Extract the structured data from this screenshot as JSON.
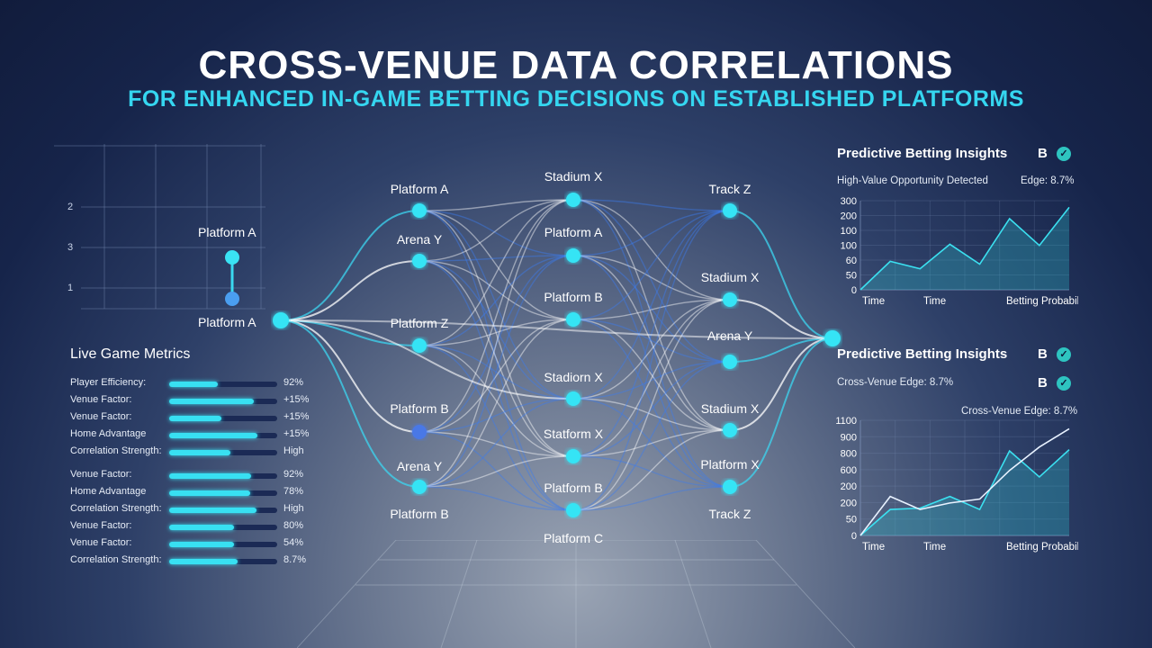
{
  "header": {
    "title": "CROSS-VENUE DATA CORRELATIONS",
    "subtitle": "FOR ENHANCED IN-GAME BETTING DECISIONS ON ESTABLISHED PLATFORMS"
  },
  "mini_chart": {
    "y_ticks": [
      "2",
      "3",
      "1"
    ],
    "top_label": "Platform A",
    "bottom_label": "Platform A"
  },
  "live_metrics": {
    "title": "Live Game Metrics",
    "rows": [
      {
        "label": "Player Efficiency:",
        "value": "92%",
        "level": 0.45
      },
      {
        "label": "Venue Factor:",
        "value": "+15%",
        "level": 0.78
      },
      {
        "label": "Venue Factor:",
        "value": "+15%",
        "level": 0.48
      },
      {
        "label": "Home Advantage",
        "value": "+15%",
        "level": 0.82
      },
      {
        "label": "Correlation Strength:",
        "value": "High",
        "level": 0.57
      },
      {
        "label": "Venue Factor:",
        "value": "92%",
        "level": 0.76
      },
      {
        "label": "Home Advantage",
        "value": "78%",
        "level": 0.75
      },
      {
        "label": "Correlation Strength:",
        "value": "High",
        "level": 0.81
      },
      {
        "label": "Venue Factor:",
        "value": "80%",
        "level": 0.6
      },
      {
        "label": "Venue Factor:",
        "value": "54%",
        "level": 0.6
      },
      {
        "label": "Correlation Strength:",
        "value": "8.7%",
        "level": 0.63
      }
    ]
  },
  "network": {
    "col1": [
      "Platform A",
      "Arena Y",
      "Platform Z",
      "Platform B",
      "Arena Y",
      "Platform B"
    ],
    "col2": [
      "Stadium X",
      "Platform A",
      "Platform B",
      "Stadiorn X",
      "Statform X",
      "Platform B",
      "Platform C"
    ],
    "col3": [
      "Track Z",
      "Stadium X",
      "Arena Y",
      "Stadium X",
      "Platform X",
      "Track Z"
    ]
  },
  "panel_top": {
    "heading": "Predictive Betting Insights",
    "badge": "B",
    "note": "High-Value Opportunity Detected",
    "edge": "Edge: 8.7%",
    "y_ticks": [
      "300",
      "200",
      "100",
      "100",
      "60",
      "50",
      "0"
    ],
    "x_labels": [
      "Time",
      "Time",
      "Betting Probability"
    ]
  },
  "panel_bottom": {
    "heading": "Predictive Betting Insights",
    "badge": "B",
    "note": "Cross-Venue Edge: 8.7%",
    "badge2": "B",
    "chart_note": "Cross-Venue Edge: 8.7%",
    "y_ticks": [
      "1100",
      "900",
      "800",
      "600",
      "200",
      "200",
      "50",
      "0"
    ],
    "x_labels": [
      "Time",
      "Time",
      "Betting Probability"
    ]
  },
  "chart_data": [
    {
      "type": "area",
      "title": "",
      "y_ticks": [
        "300",
        "200",
        "100",
        "100",
        "60",
        "50",
        "0"
      ],
      "series": [
        {
          "values": [
            0,
            50,
            37,
            80,
            45,
            125,
            78,
            145
          ]
        }
      ]
    },
    {
      "type": "area",
      "title": "",
      "y_ticks": [
        "1100",
        "900",
        "800",
        "600",
        "200",
        "200",
        "50",
        "0"
      ],
      "series": [
        {
          "values": [
            0,
            200,
            210,
            300,
            200,
            650,
            450,
            660
          ]
        },
        {
          "values": [
            0,
            300,
            200,
            250,
            280,
            500,
            680,
            820
          ]
        }
      ]
    }
  ],
  "colors": {
    "accent": "#35d6f0",
    "node": "#35e4f5",
    "node_dim": "#4a78e6",
    "line_white": "#ffffff",
    "line_blue": "#3c7cf0"
  }
}
